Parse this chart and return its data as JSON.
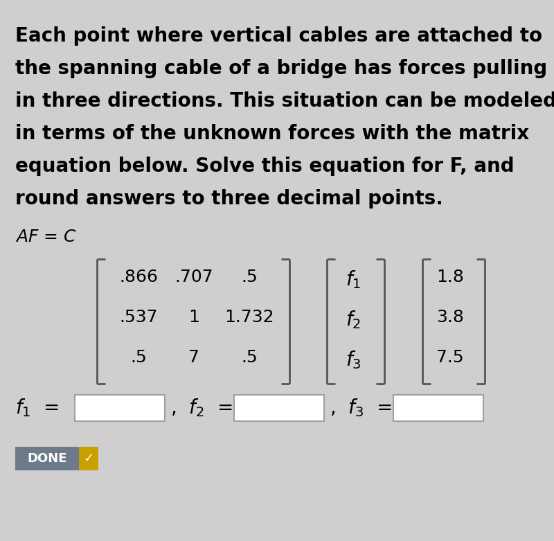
{
  "bg_color": "#d0cece",
  "text_color": "#000000",
  "paragraph_lines": [
    "Each point where vertical cables are attached to",
    "the spanning cable of a bridge has forces pulling",
    "in three directions. This situation can be modeled",
    "in terms of the unknown forces with the matrix",
    "equation below. Solve this equation for F, and",
    "round answers to three decimal points."
  ],
  "matrix_A": [
    [
      ".866",
      ".707",
      ".5"
    ],
    [
      ".537",
      "1",
      "1.732"
    ],
    [
      ".5",
      "7",
      ".5"
    ]
  ],
  "matrix_F": [
    "f_1",
    "f_2",
    "f_3"
  ],
  "matrix_C": [
    "1.8",
    "3.8",
    "7.5"
  ],
  "done_label": "DONE",
  "done_bg": "#6c7a8a",
  "done_check_bg": "#c8a000",
  "done_text": "#ffffff",
  "input_box_color": "#ffffff",
  "input_box_edge": "#a0a0a0",
  "bracket_color": "#555555",
  "font_size_para": 20,
  "font_size_eq": 18,
  "font_size_matrix": 18,
  "font_size_input": 18
}
